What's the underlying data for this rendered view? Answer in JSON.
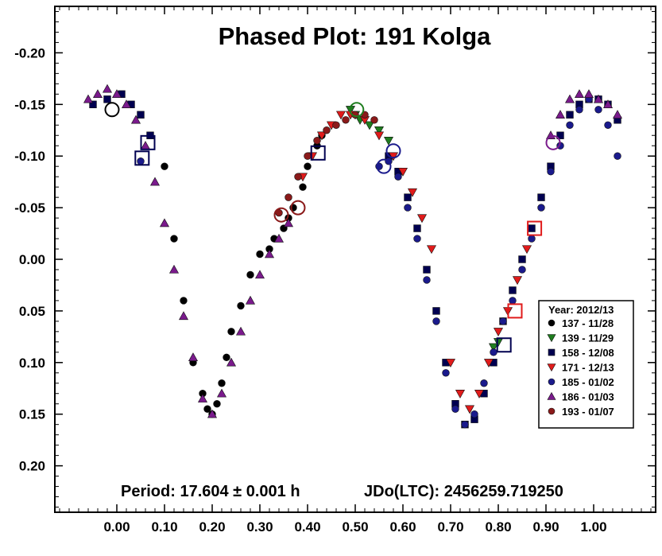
{
  "chart_data": {
    "type": "scatter",
    "title": "Phased Plot: 191 Kolga",
    "xlabel": "",
    "ylabel": "",
    "xlim": [
      -0.13,
      1.13
    ],
    "ylim": [
      0.245,
      -0.245
    ],
    "y_inverted": true,
    "x_ticks": [
      "0.00",
      "0.10",
      "0.20",
      "0.30",
      "0.40",
      "0.50",
      "0.60",
      "0.70",
      "0.80",
      "0.90",
      "1.00"
    ],
    "x_tick_values": [
      0.0,
      0.1,
      0.2,
      0.3,
      0.4,
      0.5,
      0.6,
      0.7,
      0.8,
      0.9,
      1.0
    ],
    "y_ticks": [
      "-0.20",
      "-0.15",
      "-0.10",
      "-0.05",
      "0.00",
      "0.05",
      "0.10",
      "0.15",
      "0.20"
    ],
    "y_tick_values": [
      -0.2,
      -0.15,
      -0.1,
      -0.05,
      0.0,
      0.05,
      0.1,
      0.15,
      0.2
    ],
    "grid": false,
    "legend_placement": "right",
    "legend_title": "Year: 2012/13",
    "footer": {
      "period": "Period: 17.604 ± 0.001 h",
      "epoch": "JDo(LTC): 2456259.719250"
    },
    "series": [
      {
        "name": "137 - 11/28",
        "marker": "circle",
        "color": "#000000",
        "x": [
          0.1,
          0.12,
          0.14,
          0.16,
          0.18,
          0.19,
          0.2,
          0.21,
          0.22,
          0.23,
          0.24,
          0.26,
          0.28,
          0.3,
          0.32,
          0.33,
          0.35,
          0.36,
          0.37,
          0.39,
          0.4,
          0.42,
          0.43
        ],
        "y": [
          -0.09,
          -0.02,
          0.04,
          0.1,
          0.13,
          0.145,
          0.15,
          0.14,
          0.12,
          0.095,
          0.07,
          0.045,
          0.015,
          -0.005,
          -0.01,
          -0.02,
          -0.03,
          -0.04,
          -0.05,
          -0.07,
          -0.09,
          -0.11,
          -0.12
        ]
      },
      {
        "name": "139 - 11/29",
        "marker": "triangle-down",
        "color": "#1e7d1e",
        "x": [
          0.49,
          0.5,
          0.51,
          0.53,
          0.55,
          0.57,
          0.79,
          0.8
        ],
        "y": [
          -0.145,
          -0.14,
          -0.135,
          -0.13,
          -0.125,
          -0.115,
          0.085,
          0.08
        ]
      },
      {
        "name": "158 - 12/08",
        "marker": "square",
        "color": "#000050",
        "x": [
          -0.05,
          -0.02,
          0.01,
          0.03,
          0.05,
          0.07,
          0.57,
          0.59,
          0.61,
          0.63,
          0.65,
          0.67,
          0.69,
          0.71,
          0.73,
          0.75,
          0.77,
          0.79,
          0.81,
          0.83,
          0.85,
          0.87,
          0.89,
          0.91,
          0.93,
          0.95,
          0.97,
          0.99,
          1.01,
          1.03,
          1.05
        ],
        "y": [
          -0.15,
          -0.155,
          -0.16,
          -0.15,
          -0.14,
          -0.12,
          -0.1,
          -0.085,
          -0.06,
          -0.03,
          0.01,
          0.05,
          0.1,
          0.14,
          0.16,
          0.155,
          0.13,
          0.1,
          0.06,
          0.03,
          0.0,
          -0.03,
          -0.06,
          -0.09,
          -0.12,
          -0.14,
          -0.15,
          -0.155,
          -0.155,
          -0.15,
          -0.135
        ]
      },
      {
        "name": "171 - 12/13",
        "marker": "triangle-down",
        "color": "#e01b1b",
        "x": [
          0.39,
          0.41,
          0.43,
          0.45,
          0.47,
          0.49,
          0.52,
          0.55,
          0.58,
          0.6,
          0.62,
          0.64,
          0.66,
          0.7,
          0.72,
          0.74,
          0.76,
          0.78,
          0.8,
          0.82,
          0.84,
          0.86
        ],
        "y": [
          -0.08,
          -0.1,
          -0.12,
          -0.13,
          -0.14,
          -0.14,
          -0.135,
          -0.12,
          -0.1,
          -0.085,
          -0.065,
          -0.04,
          -0.01,
          0.1,
          0.13,
          0.145,
          0.13,
          0.1,
          0.07,
          0.05,
          0.02,
          -0.01
        ]
      },
      {
        "name": "185 - 01/02",
        "marker": "circle",
        "color": "#1a1a8c",
        "x": [
          0.05,
          0.55,
          0.57,
          0.59,
          0.61,
          0.63,
          0.65,
          0.67,
          0.69,
          0.71,
          0.73,
          0.75,
          0.77,
          0.79,
          0.81,
          0.83,
          0.85,
          0.87,
          0.89,
          0.91,
          0.93,
          0.95,
          0.97,
          0.99,
          1.01,
          1.03,
          1.05
        ],
        "y": [
          -0.095,
          -0.09,
          -0.095,
          -0.08,
          -0.05,
          -0.02,
          0.02,
          0.06,
          0.11,
          0.145,
          0.16,
          0.15,
          0.12,
          0.09,
          0.06,
          0.04,
          0.01,
          -0.02,
          -0.05,
          -0.085,
          -0.11,
          -0.13,
          -0.145,
          -0.155,
          -0.145,
          -0.13,
          -0.1
        ]
      },
      {
        "name": "186 - 01/03",
        "marker": "triangle-up",
        "color": "#7a1a8c",
        "x": [
          -0.06,
          -0.04,
          -0.02,
          0.0,
          0.02,
          0.04,
          0.06,
          0.08,
          0.1,
          0.12,
          0.14,
          0.16,
          0.18,
          0.2,
          0.22,
          0.24,
          0.26,
          0.28,
          0.3,
          0.32,
          0.34,
          0.36,
          0.91,
          0.93,
          0.95,
          0.97,
          0.99,
          1.01,
          1.03,
          1.05
        ],
        "y": [
          -0.155,
          -0.16,
          -0.165,
          -0.16,
          -0.15,
          -0.135,
          -0.11,
          -0.075,
          -0.035,
          0.01,
          0.055,
          0.095,
          0.135,
          0.15,
          0.13,
          0.1,
          0.07,
          0.04,
          0.015,
          -0.005,
          -0.02,
          -0.035,
          -0.12,
          -0.14,
          -0.155,
          -0.16,
          -0.16,
          -0.155,
          -0.15,
          -0.14
        ]
      },
      {
        "name": "193 - 01/07",
        "marker": "circle",
        "color": "#8b1a1a",
        "x": [
          0.34,
          0.36,
          0.38,
          0.4,
          0.42,
          0.44,
          0.46,
          0.48,
          0.5,
          0.52,
          0.54
        ],
        "y": [
          -0.045,
          -0.06,
          -0.08,
          -0.1,
          -0.115,
          -0.125,
          -0.13,
          -0.135,
          -0.14,
          -0.14,
          -0.135
        ]
      }
    ],
    "highlighted_points": [
      {
        "series": "137 - 11/28",
        "marker": "circle",
        "x": -0.01,
        "y": -0.145
      },
      {
        "series": "185 - 01/02",
        "marker": "circle",
        "x": 0.56,
        "y": -0.09
      },
      {
        "series": "185 - 01/02",
        "marker": "circle",
        "x": 0.58,
        "y": -0.105
      },
      {
        "series": "158 - 12/08",
        "marker": "square",
        "x": 0.053,
        "y": -0.098
      },
      {
        "series": "158 - 12/08",
        "marker": "square",
        "x": 0.065,
        "y": -0.113
      },
      {
        "series": "158 - 12/08",
        "marker": "square",
        "x": 0.422,
        "y": -0.103
      },
      {
        "series": "158 - 12/08",
        "marker": "square",
        "x": 0.812,
        "y": 0.083
      },
      {
        "series": "171 - 12/13",
        "marker": "square",
        "x": 0.876,
        "y": -0.03
      },
      {
        "series": "171 - 12/13",
        "marker": "square",
        "x": 0.835,
        "y": 0.05
      },
      {
        "series": "139 - 11/29",
        "marker": "circle",
        "x": 0.503,
        "y": -0.145
      },
      {
        "series": "193 - 01/07",
        "marker": "circle",
        "x": 0.345,
        "y": -0.043
      },
      {
        "series": "193 - 01/07",
        "marker": "circle",
        "x": 0.38,
        "y": -0.05
      },
      {
        "series": "186 - 01/03",
        "marker": "circle",
        "x": 0.915,
        "y": -0.113
      }
    ]
  }
}
